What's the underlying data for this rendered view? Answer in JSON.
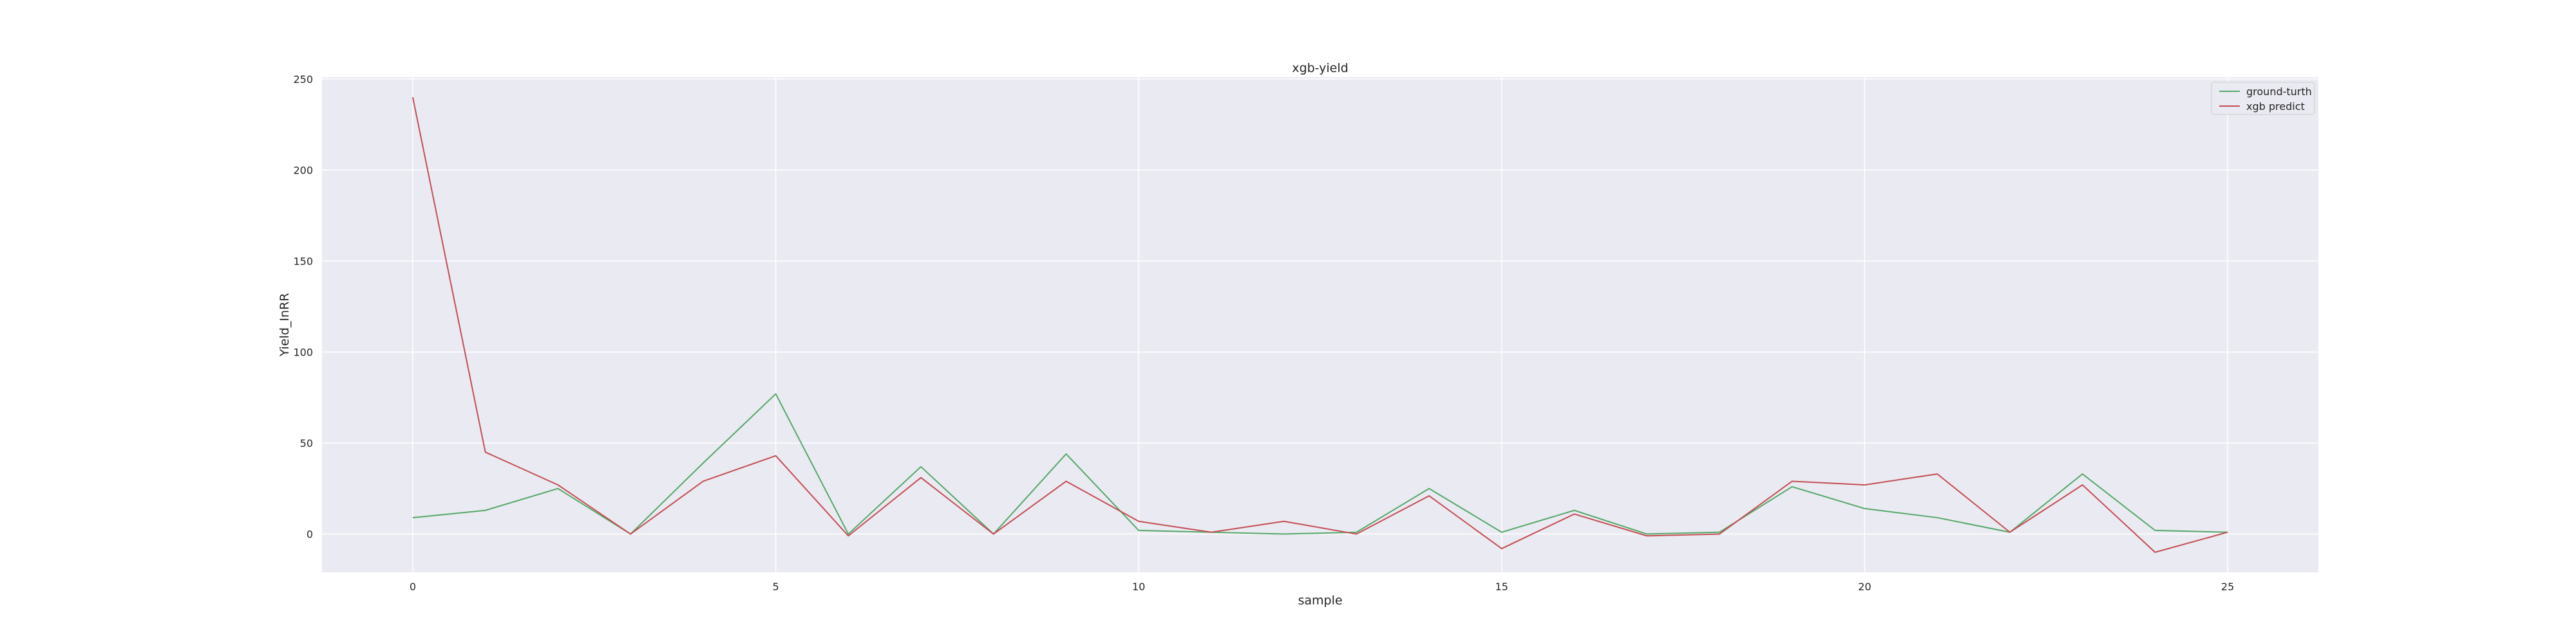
{
  "chart_data": {
    "type": "line",
    "title": "xgb-yield",
    "xlabel": "sample",
    "ylabel": "Yield_InRR",
    "xlim": [
      -1.25,
      26.25
    ],
    "ylim": [
      -21,
      251
    ],
    "xticks": [
      0,
      5,
      10,
      15,
      20,
      25
    ],
    "yticks": [
      0,
      50,
      100,
      150,
      200,
      250
    ],
    "grid": true,
    "legend_position": "top-right",
    "background": "#eaeaf2",
    "series": [
      {
        "name": "ground-turth",
        "color": "#55a868",
        "x": [
          0,
          1,
          2,
          3,
          4,
          5,
          6,
          7,
          8,
          9,
          10,
          11,
          12,
          13,
          14,
          15,
          16,
          17,
          18,
          19,
          20,
          21,
          22,
          23,
          24,
          25
        ],
        "values": [
          9,
          13,
          25,
          0,
          39,
          77,
          0,
          37,
          0,
          44,
          2,
          1,
          0,
          1,
          25,
          1,
          13,
          0,
          1,
          26,
          14,
          9,
          1,
          33,
          2,
          1
        ]
      },
      {
        "name": "xgb predict",
        "color": "#c44e52",
        "x": [
          0,
          1,
          2,
          3,
          4,
          5,
          6,
          7,
          8,
          9,
          10,
          11,
          12,
          13,
          14,
          15,
          16,
          17,
          18,
          19,
          20,
          21,
          22,
          23,
          24,
          25
        ],
        "values": [
          240,
          45,
          27,
          0,
          29,
          43,
          -1,
          31,
          0,
          29,
          7,
          1,
          7,
          0,
          21,
          -8,
          11,
          -1,
          0,
          29,
          27,
          33,
          1,
          27,
          -10,
          1
        ]
      }
    ]
  }
}
